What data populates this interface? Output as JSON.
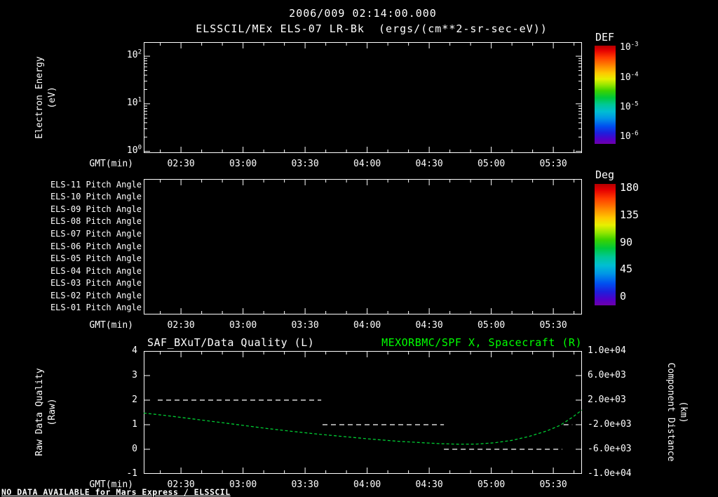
{
  "header": {
    "line1": "2006/009 02:14:00.000",
    "line2": "ELSSCIL/MEx ELS-07 LR-Bk  (ergs/(cm**2-sr-sec-eV))"
  },
  "colors": {
    "background": "#000000",
    "foreground": "#ffffff",
    "title_green": "#00ff00",
    "curve_green": "#00cc33"
  },
  "time_axis": {
    "label": "GMT(min)",
    "minor_step_frac": 0.0472,
    "ticks": [
      {
        "label": "02:30",
        "f": 0.085
      },
      {
        "label": "03:00",
        "f": 0.2266
      },
      {
        "label": "03:30",
        "f": 0.3682
      },
      {
        "label": "04:00",
        "f": 0.5098
      },
      {
        "label": "04:30",
        "f": 0.6514
      },
      {
        "label": "05:00",
        "f": 0.793
      },
      {
        "label": "05:30",
        "f": 0.9346
      }
    ]
  },
  "panel_energy": {
    "ylabel_line1": "Electron Energy",
    "ylabel_line2": "(eV)",
    "yticks": [
      {
        "base": "10",
        "exp": "2",
        "f": 0.127
      },
      {
        "base": "10",
        "exp": "1",
        "f": 0.556
      },
      {
        "base": "10",
        "exp": "0",
        "f": 0.985
      }
    ],
    "colorbar": {
      "title": "DEF",
      "ticks": [
        {
          "base": "10",
          "exp": "-3",
          "f": 0.02
        },
        {
          "base": "10",
          "exp": "-4",
          "f": 0.325
        },
        {
          "base": "10",
          "exp": "-5",
          "f": 0.625
        },
        {
          "base": "10",
          "exp": "-6",
          "f": 0.93
        }
      ]
    }
  },
  "panel_pitch": {
    "row_labels": [
      "ELS-11 Pitch Angle",
      "ELS-10 Pitch Angle",
      "ELS-09 Pitch Angle",
      "ELS-08 Pitch Angle",
      "ELS-07 Pitch Angle",
      "ELS-06 Pitch Angle",
      "ELS-05 Pitch Angle",
      "ELS-04 Pitch Angle",
      "ELS-03 Pitch Angle",
      "ELS-02 Pitch Angle",
      "ELS-01 Pitch Angle"
    ],
    "colorbar": {
      "title": "Deg",
      "ticks": [
        {
          "label": "180",
          "f": 0.029
        },
        {
          "label": "135",
          "f": 0.253
        },
        {
          "label": "90",
          "f": 0.477
        },
        {
          "label": "45",
          "f": 0.701
        },
        {
          "label": "0",
          "f": 0.925
        }
      ]
    }
  },
  "panel_quality": {
    "title_left": "SAF_BXuT/Data Quality (L)",
    "title_right": "MEXORBMC/SPF X, Spacecraft (R)",
    "ylabel_left_line1": "Raw Data Quality",
    "ylabel_left_line2": "(Raw)",
    "ylabel_right_line1": "Component Distance",
    "ylabel_right_line2": "(km)",
    "left_ticks": [
      {
        "label": "4",
        "f": 0
      },
      {
        "label": "3",
        "f": 0.2
      },
      {
        "label": "2",
        "f": 0.4
      },
      {
        "label": "1",
        "f": 0.6
      },
      {
        "label": "0",
        "f": 0.8
      },
      {
        "label": "-1",
        "f": 1
      }
    ],
    "right_ticks": [
      {
        "label": "1.0e+04",
        "f": 0
      },
      {
        "label": "6.0e+03",
        "f": 0.2
      },
      {
        "label": "2.0e+03",
        "f": 0.4
      },
      {
        "label": "-2.0e+03",
        "f": 0.6
      },
      {
        "label": "-6.0e+03",
        "f": 0.8
      },
      {
        "label": "-1.0e+04",
        "f": 1
      }
    ]
  },
  "footer": {
    "no_data": "NO DATA AVAILABLE for Mars Express / ELSSCIL"
  },
  "chart_data": [
    {
      "type": "heatmap",
      "panel": "top",
      "timestamp_title": "2006/009 02:14:00.000",
      "title": "ELSSCIL/MEx ELS-07 LR-Bk (ergs/(cm**2-sr-sec-eV))",
      "xlabel": "GMT(min)",
      "x_ticks": [
        "02:30",
        "03:00",
        "03:30",
        "04:00",
        "04:30",
        "05:00",
        "05:30"
      ],
      "ylabel": "Electron Energy (eV)",
      "y_scale": "log",
      "y_ticks": [
        1,
        10,
        100
      ],
      "colorbar_label": "DEF",
      "colorbar_ticks": [
        "1e-3",
        "1e-4",
        "1e-5",
        "1e-6"
      ],
      "values": [],
      "note": "panel is empty - no data plotted"
    },
    {
      "type": "heatmap",
      "panel": "middle",
      "rows": [
        "ELS-11 Pitch Angle",
        "ELS-10 Pitch Angle",
        "ELS-09 Pitch Angle",
        "ELS-08 Pitch Angle",
        "ELS-07 Pitch Angle",
        "ELS-06 Pitch Angle",
        "ELS-05 Pitch Angle",
        "ELS-04 Pitch Angle",
        "ELS-03 Pitch Angle",
        "ELS-02 Pitch Angle",
        "ELS-01 Pitch Angle"
      ],
      "xlabel": "GMT(min)",
      "x_ticks": [
        "02:30",
        "03:00",
        "03:30",
        "04:00",
        "04:30",
        "05:00",
        "05:30"
      ],
      "colorbar_label": "Deg",
      "colorbar_ticks": [
        180,
        135,
        90,
        45,
        0
      ],
      "values": [],
      "note": "panel is empty - no data plotted"
    },
    {
      "type": "line",
      "panel": "bottom",
      "titles": [
        "SAF_BXuT/Data Quality (L)",
        "MEXORBMC/SPF X, Spacecraft (R)"
      ],
      "xlabel": "GMT(min)",
      "x_ticks": [
        "02:30",
        "03:00",
        "03:30",
        "04:00",
        "04:30",
        "05:00",
        "05:30"
      ],
      "left_axis": {
        "label": "Raw Data Quality (Raw)",
        "min": -1,
        "max": 4
      },
      "right_axis": {
        "label": "Component Distance (km)",
        "min": -10000,
        "max": 10000
      },
      "series": [
        {
          "name": "SAF_BXuT/Data Quality (L)",
          "axis": "left",
          "color": "#ffffff",
          "linestyle": "dashed",
          "segments": [
            {
              "value": 2,
              "x_frac": [
                0.032,
                0.405
              ]
            },
            {
              "value": 1,
              "x_frac": [
                0.408,
                0.685
              ]
            },
            {
              "value": 0,
              "x_frac": [
                0.685,
                0.955
              ]
            },
            {
              "value": 1,
              "x_frac": [
                0.958,
                0.978
              ]
            }
          ]
        },
        {
          "name": "MEXORBMC/SPF X, Spacecraft (R)",
          "axis": "right",
          "color": "#00cc33",
          "linestyle": "dashed",
          "points_x_frac_km": [
            [
              0.0,
              -100
            ],
            [
              0.05,
              -500
            ],
            [
              0.1,
              -950
            ],
            [
              0.16,
              -1500
            ],
            [
              0.22,
              -2050
            ],
            [
              0.28,
              -2600
            ],
            [
              0.34,
              -3100
            ],
            [
              0.4,
              -3550
            ],
            [
              0.46,
              -3950
            ],
            [
              0.52,
              -4350
            ],
            [
              0.58,
              -4700
            ],
            [
              0.64,
              -4950
            ],
            [
              0.68,
              -5100
            ],
            [
              0.72,
              -5180
            ],
            [
              0.76,
              -5150
            ],
            [
              0.8,
              -4950
            ],
            [
              0.84,
              -4550
            ],
            [
              0.88,
              -3900
            ],
            [
              0.92,
              -3000
            ],
            [
              0.95,
              -2100
            ],
            [
              0.98,
              -700
            ],
            [
              1.0,
              400
            ]
          ]
        }
      ]
    }
  ]
}
